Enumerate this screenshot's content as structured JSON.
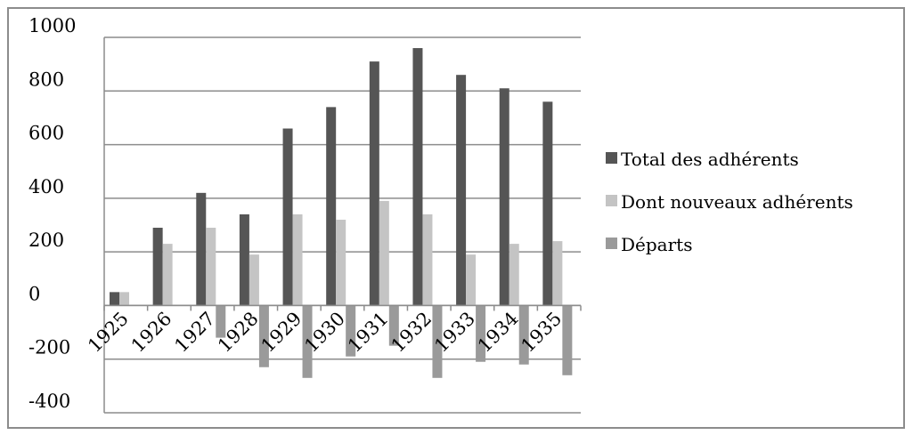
{
  "chart_data": {
    "type": "bar",
    "categories": [
      "1925",
      "1926",
      "1927",
      "1928",
      "1929",
      "1930",
      "1931",
      "1932",
      "1933",
      "1934",
      "1935"
    ],
    "series": [
      {
        "name": "Total des adhérents",
        "color": "#555555",
        "values": [
          50,
          290,
          420,
          340,
          660,
          740,
          910,
          960,
          860,
          810,
          760
        ]
      },
      {
        "name": "Dont nouveaux adhérents",
        "color": "#c4c4c4",
        "values": [
          50,
          230,
          290,
          190,
          340,
          320,
          390,
          340,
          190,
          230,
          240
        ]
      },
      {
        "name": "Départs",
        "color": "#9a9a9a",
        "values": [
          0,
          0,
          -120,
          -230,
          -270,
          -190,
          -150,
          -270,
          -210,
          -220,
          -260
        ]
      }
    ],
    "yticks": [
      "1000",
      "800",
      "600",
      "400",
      "200",
      "0",
      "-200",
      "-400"
    ],
    "ylim": [
      -400,
      1000
    ],
    "grid": true,
    "legend": "right"
  }
}
